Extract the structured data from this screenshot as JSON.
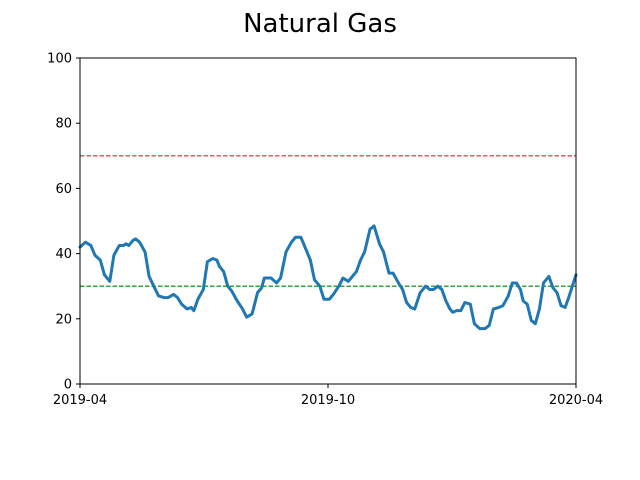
{
  "chart_data": {
    "type": "line",
    "title": "Natural Gas",
    "xlabel": "",
    "ylabel": "",
    "x_range": [
      "2019-04-01",
      "2020-04-01"
    ],
    "ylim": [
      0,
      100
    ],
    "x_ticks": [
      "2019-04",
      "2019-10",
      "2020-04"
    ],
    "y_ticks": [
      0,
      20,
      40,
      60,
      80,
      100
    ],
    "grid": false,
    "legend": "none",
    "series": [
      {
        "color": "#1f77b4",
        "points": [
          [
            "2019-04-01",
            42
          ],
          [
            "2019-04-05",
            43.5
          ],
          [
            "2019-04-09",
            42.5
          ],
          [
            "2019-04-12",
            39.5
          ],
          [
            "2019-04-16",
            38
          ],
          [
            "2019-04-19",
            33.5
          ],
          [
            "2019-04-23",
            31.5
          ],
          [
            "2019-04-26",
            39.5
          ],
          [
            "2019-04-30",
            42.5
          ],
          [
            "2019-05-03",
            42.5
          ],
          [
            "2019-05-05",
            43
          ],
          [
            "2019-05-07",
            42.5
          ],
          [
            "2019-05-10",
            44
          ],
          [
            "2019-05-12",
            44.5
          ],
          [
            "2019-05-15",
            43.5
          ],
          [
            "2019-05-19",
            40.5
          ],
          [
            "2019-05-22",
            33
          ],
          [
            "2019-05-26",
            29.5
          ],
          [
            "2019-05-29",
            27
          ],
          [
            "2019-06-02",
            26.5
          ],
          [
            "2019-06-05",
            26.5
          ],
          [
            "2019-06-09",
            27.5
          ],
          [
            "2019-06-12",
            26.5
          ],
          [
            "2019-06-15",
            24.5
          ],
          [
            "2019-06-19",
            23
          ],
          [
            "2019-06-22",
            23.5
          ],
          [
            "2019-06-24",
            22.5
          ],
          [
            "2019-06-27",
            26
          ],
          [
            "2019-07-01",
            29
          ],
          [
            "2019-07-04",
            37.5
          ],
          [
            "2019-07-08",
            38.5
          ],
          [
            "2019-07-11",
            38
          ],
          [
            "2019-07-13",
            36
          ],
          [
            "2019-07-16",
            34.5
          ],
          [
            "2019-07-19",
            30
          ],
          [
            "2019-07-22",
            28.5
          ],
          [
            "2019-07-26",
            25.5
          ],
          [
            "2019-07-30",
            23
          ],
          [
            "2019-08-02",
            20.5
          ],
          [
            "2019-08-06",
            21.5
          ],
          [
            "2019-08-10",
            28
          ],
          [
            "2019-08-13",
            29.5
          ],
          [
            "2019-08-15",
            32.5
          ],
          [
            "2019-08-20",
            32.5
          ],
          [
            "2019-08-24",
            31
          ],
          [
            "2019-08-27",
            32.5
          ],
          [
            "2019-08-31",
            40.5
          ],
          [
            "2019-09-04",
            43.5
          ],
          [
            "2019-09-07",
            45
          ],
          [
            "2019-09-11",
            45
          ],
          [
            "2019-09-14",
            42
          ],
          [
            "2019-09-18",
            38
          ],
          [
            "2019-09-21",
            32
          ],
          [
            "2019-09-25",
            30
          ],
          [
            "2019-09-28",
            26
          ],
          [
            "2019-10-02",
            26
          ],
          [
            "2019-10-05",
            27.5
          ],
          [
            "2019-10-09",
            30
          ],
          [
            "2019-10-12",
            32.5
          ],
          [
            "2019-10-16",
            31.5
          ],
          [
            "2019-10-19",
            33
          ],
          [
            "2019-10-22",
            34.5
          ],
          [
            "2019-10-25",
            38
          ],
          [
            "2019-10-28",
            40.5
          ],
          [
            "2019-11-01",
            47.5
          ],
          [
            "2019-11-04",
            48.5
          ],
          [
            "2019-11-08",
            43
          ],
          [
            "2019-11-11",
            40.5
          ],
          [
            "2019-11-15",
            34
          ],
          [
            "2019-11-18",
            34
          ],
          [
            "2019-11-22",
            31
          ],
          [
            "2019-11-25",
            29
          ],
          [
            "2019-11-28",
            25
          ],
          [
            "2019-12-01",
            23.5
          ],
          [
            "2019-12-04",
            23
          ],
          [
            "2019-12-08",
            28
          ],
          [
            "2019-12-12",
            30
          ],
          [
            "2019-12-15",
            29
          ],
          [
            "2019-12-18",
            29
          ],
          [
            "2019-12-21",
            30
          ],
          [
            "2019-12-24",
            29
          ],
          [
            "2019-12-27",
            25.5
          ],
          [
            "2019-12-30",
            23
          ],
          [
            "2020-01-01",
            22
          ],
          [
            "2020-01-04",
            22.5
          ],
          [
            "2020-01-07",
            22.5
          ],
          [
            "2020-01-10",
            25
          ],
          [
            "2020-01-14",
            24.5
          ],
          [
            "2020-01-17",
            18.5
          ],
          [
            "2020-01-21",
            17
          ],
          [
            "2020-01-25",
            17
          ],
          [
            "2020-01-28",
            18
          ],
          [
            "2020-01-31",
            23
          ],
          [
            "2020-02-04",
            23.5
          ],
          [
            "2020-02-07",
            24
          ],
          [
            "2020-02-11",
            27
          ],
          [
            "2020-02-14",
            31
          ],
          [
            "2020-02-17",
            31
          ],
          [
            "2020-02-20",
            29
          ],
          [
            "2020-02-22",
            25.5
          ],
          [
            "2020-02-25",
            24.5
          ],
          [
            "2020-02-28",
            19.5
          ],
          [
            "2020-03-02",
            18.5
          ],
          [
            "2020-03-05",
            23
          ],
          [
            "2020-03-08",
            31
          ],
          [
            "2020-03-12",
            33
          ],
          [
            "2020-03-15",
            29.5
          ],
          [
            "2020-03-18",
            28
          ],
          [
            "2020-03-21",
            24
          ],
          [
            "2020-03-24",
            23.5
          ],
          [
            "2020-03-27",
            27
          ],
          [
            "2020-04-01",
            33.5
          ]
        ]
      }
    ],
    "reference_lines": [
      {
        "y": 70,
        "color": "#d62728",
        "style": "dashed"
      },
      {
        "y": 30,
        "color": "#008000",
        "style": "dashed"
      }
    ]
  }
}
